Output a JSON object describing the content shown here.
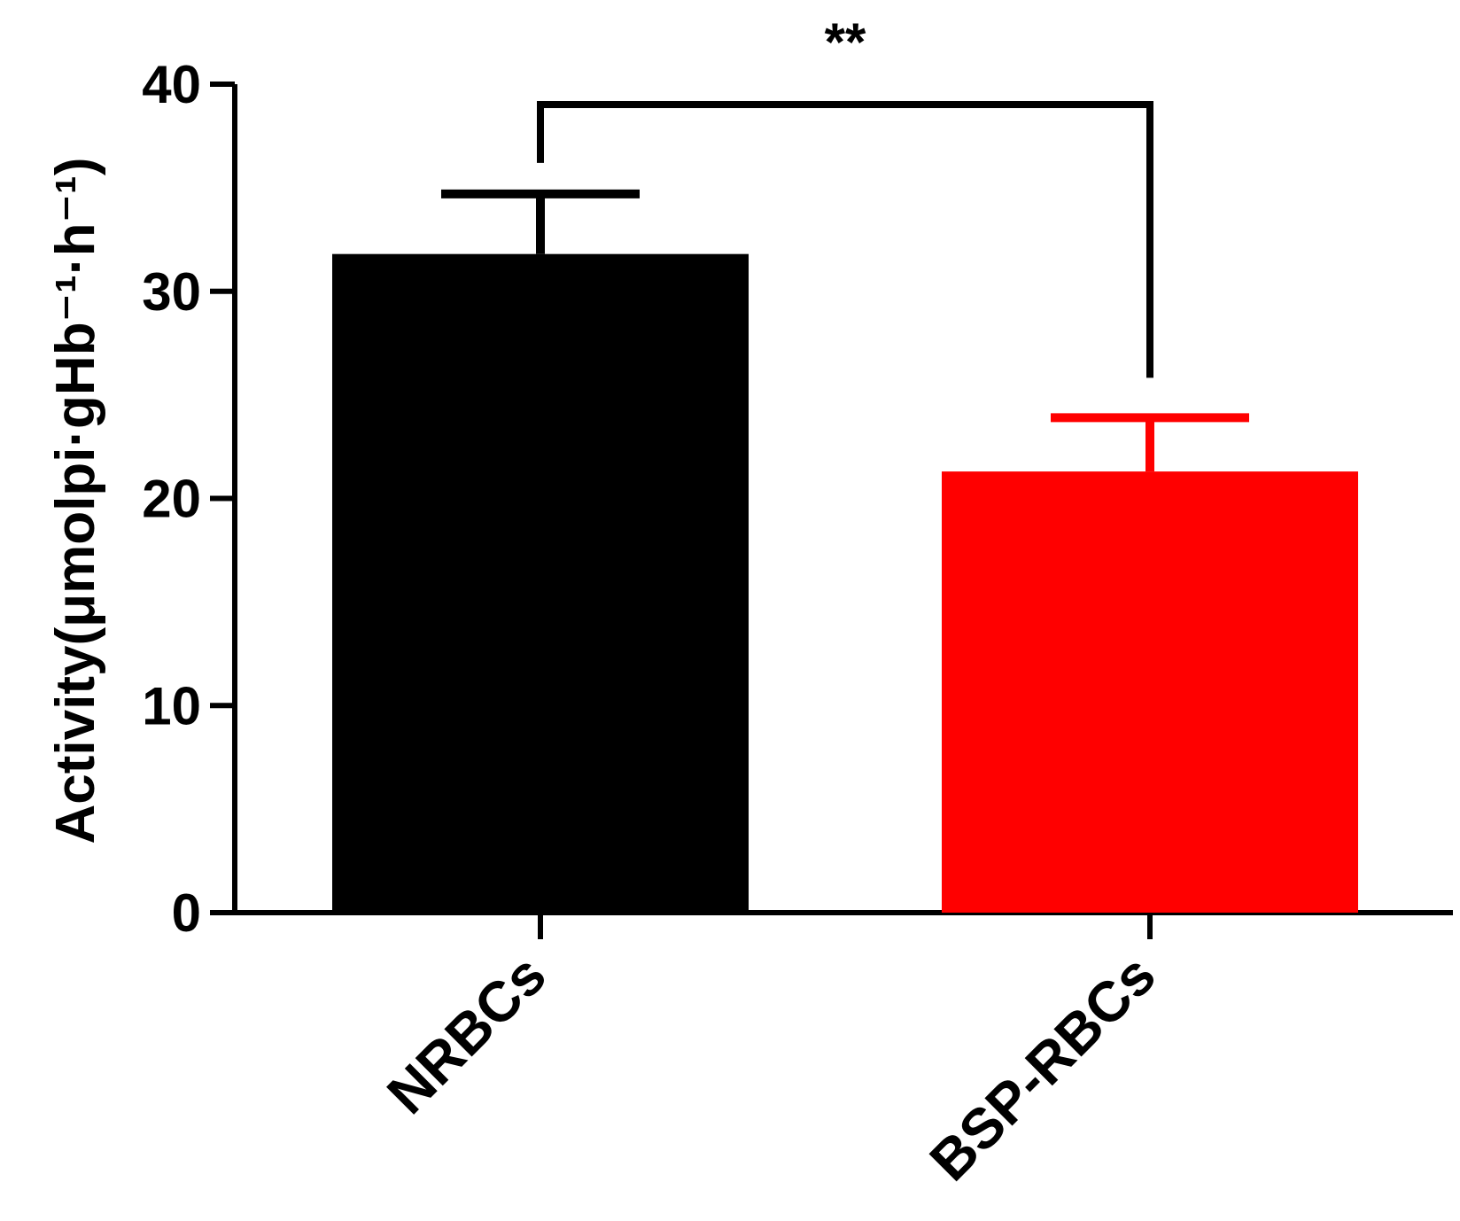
{
  "chart_data": {
    "type": "bar",
    "title": "",
    "xlabel": "",
    "ylabel": "Activity(μmolpi·gHb⁻¹·h⁻¹)",
    "ylim": [
      0,
      40
    ],
    "yticks": [
      0,
      10,
      20,
      30,
      40
    ],
    "categories": [
      "NRBCs",
      "BSP-RBCs"
    ],
    "values": [
      31.8,
      21.3
    ],
    "errors": [
      2.9,
      2.6
    ],
    "colors": [
      "#000000",
      "#ff0000"
    ],
    "significance": {
      "label": "**",
      "between": [
        0,
        1
      ]
    },
    "grid": false,
    "legend": "none"
  }
}
